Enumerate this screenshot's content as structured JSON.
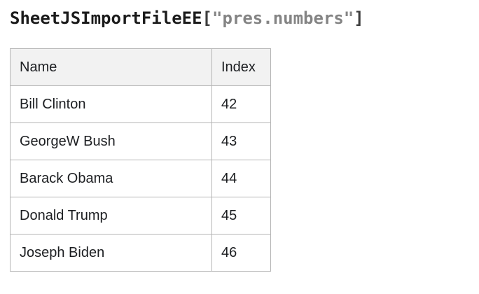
{
  "page": {
    "title": {
      "variable": "SheetJSImportFileEE",
      "bracket_open": "[",
      "string": "\"pres.numbers\"",
      "bracket_close": "]"
    },
    "colors": {
      "title_text": "#1b1b1b",
      "title_bracket": "#3c3c3c",
      "title_string": "#848484",
      "table_border": "#b5b5b5",
      "header_bg": "#f2f2f2",
      "cell_text": "#1c1e21",
      "page_bg": "#ffffff"
    }
  },
  "table": {
    "columns": [
      "Name",
      "Index"
    ],
    "rows": [
      {
        "name": "Bill Clinton",
        "index": "42"
      },
      {
        "name": "GeorgeW Bush",
        "index": "43"
      },
      {
        "name": "Barack Obama",
        "index": "44"
      },
      {
        "name": "Donald Trump",
        "index": "45"
      },
      {
        "name": "Joseph Biden",
        "index": "46"
      }
    ]
  }
}
